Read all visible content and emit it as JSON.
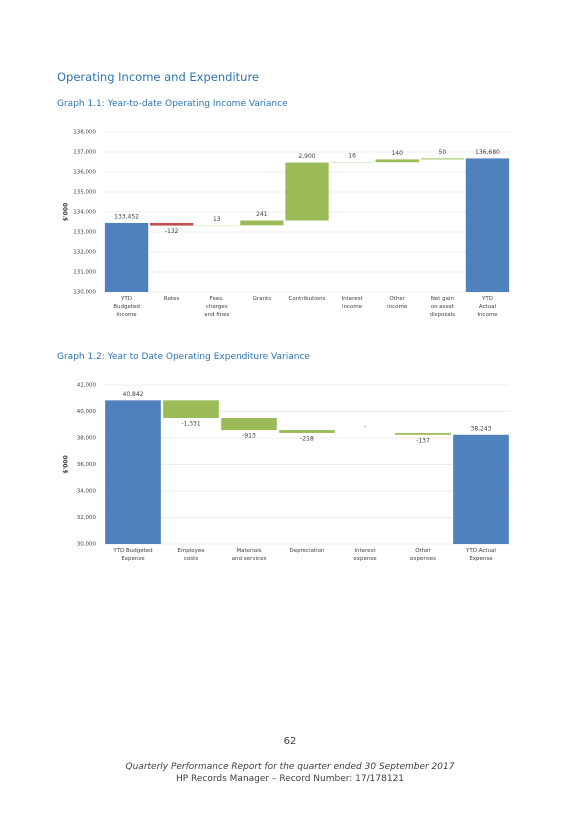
{
  "heading": "Operating Income and Expenditure",
  "chart_data": [
    {
      "type": "waterfall",
      "title": "Graph 1.1:  Year-to-date Operating Income Variance",
      "y_label": "$'000",
      "categories": [
        "YTD\nBudgeted\nIncome",
        "Rates",
        "Fees,\ncharges\nand fines",
        "Grants",
        "Contributions",
        "Interest\nincome",
        "Other\nincome",
        "Net gain\non asset\ndisposals",
        "YTD\nActual\nIncome"
      ],
      "values": [
        133452,
        -132,
        13,
        241,
        2900,
        16,
        140,
        50,
        136680
      ],
      "value_labels": [
        "133,452",
        "-132",
        "13",
        "241",
        "2,900",
        "16",
        "140",
        "50",
        "136,680"
      ],
      "total_color": "#4f81bd",
      "increase_color": "#9bbb59",
      "decrease_color": "#c0504d",
      "ylim": [
        130000,
        138000
      ],
      "yticks": [
        {
          "value": 130000,
          "label": "130,000"
        },
        {
          "value": 131000,
          "label": "131,000"
        },
        {
          "value": 132000,
          "label": "132,000"
        },
        {
          "value": 133000,
          "label": "133,000"
        },
        {
          "value": 134000,
          "label": "134,000"
        },
        {
          "value": 135000,
          "label": "135,000"
        },
        {
          "value": 136000,
          "label": "136,000"
        },
        {
          "value": 137000,
          "label": "137,000"
        },
        {
          "value": 138000,
          "label": "138,000"
        }
      ],
      "grid": true
    },
    {
      "type": "waterfall",
      "title": "Graph 1.2:  Year to Date Operating Expenditure Variance",
      "y_label": "$'000",
      "categories": [
        "YTD Budgeted\nExpense",
        "Employee\ncosts",
        "Materials\nand services",
        "Depreciation",
        "Interest\nexpense",
        "Other\nexpenses",
        "YTD Actual\nExpense"
      ],
      "values": [
        40842,
        -1331,
        -913,
        -218,
        0,
        -137,
        38243
      ],
      "value_labels": [
        "40,842",
        "-1,331",
        "-913",
        "-218",
        "-",
        "-137",
        "38,243"
      ],
      "total_color": "#4f81bd",
      "decrease_color": "#9bbb59",
      "ylim": [
        30000,
        42000
      ],
      "yticks": [
        {
          "value": 30000,
          "label": "30,000"
        },
        {
          "value": 32000,
          "label": "32,000"
        },
        {
          "value": 34000,
          "label": "34,000"
        },
        {
          "value": 36000,
          "label": "36,000"
        },
        {
          "value": 38000,
          "label": "38,000"
        },
        {
          "value": 40000,
          "label": "40,000"
        },
        {
          "value": 42000,
          "label": "42,000"
        }
      ],
      "grid": true
    }
  ],
  "footer": {
    "page_number": "62",
    "line1": "Quarterly Performance Report for the quarter ended 30 September 2017",
    "line2": "HP Records Manager – Record Number: 17/178121"
  }
}
